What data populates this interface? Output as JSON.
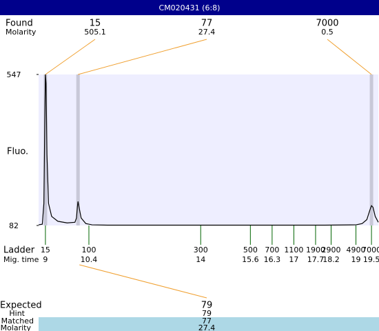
{
  "header": {
    "title": "CM020431 (6:8)"
  },
  "found": {
    "label": "Found",
    "molarity_label": "Molarity",
    "peaks": [
      {
        "time": 9,
        "size": 15,
        "molarity": 505.1
      },
      {
        "time": 10.05,
        "size": 77,
        "molarity": 27.4
      },
      {
        "time": 19.5,
        "size": 7000,
        "molarity": 0.5
      }
    ]
  },
  "chart_data": {
    "type": "line",
    "ylabel": "Fluo.",
    "color": "#000000",
    "x": [
      8.78,
      8.9,
      8.95,
      8.98,
      9,
      9.02,
      9.05,
      9.1,
      9.2,
      9.4,
      9.7,
      9.95,
      10.0,
      10.03,
      10.05,
      10.08,
      10.15,
      10.3,
      10.5,
      11,
      12,
      14,
      16,
      18,
      19,
      19.2,
      19.35,
      19.45,
      19.5,
      19.55,
      19.62,
      19.72
    ],
    "values": [
      84,
      86,
      150,
      400,
      547,
      520,
      300,
      150,
      110,
      95,
      90,
      92,
      105,
      140,
      156,
      140,
      105,
      88,
      84,
      83,
      83,
      83,
      83,
      83,
      84,
      88,
      100,
      130,
      143,
      138,
      110,
      92
    ],
    "xlim": [
      8.78,
      19.72
    ],
    "ylim": [
      82,
      547
    ],
    "yticks": [
      82,
      547
    ],
    "xlabel": "Ladder",
    "xtick_label": "Mig. time",
    "xticks": [
      9,
      10.4,
      14,
      15.6,
      16.3,
      17,
      17.7,
      18.2,
      19,
      19.5
    ],
    "ladder_sizes": [
      15,
      100,
      300,
      500,
      700,
      1100,
      1900,
      2900,
      4900,
      7000
    ]
  },
  "expected": {
    "label": "Expected",
    "value": 79,
    "hint_label": "Hint",
    "hint": 79,
    "matched_label": "Matched",
    "matched": 77,
    "molarity_label": "Molarity",
    "molarity": 27.4
  }
}
